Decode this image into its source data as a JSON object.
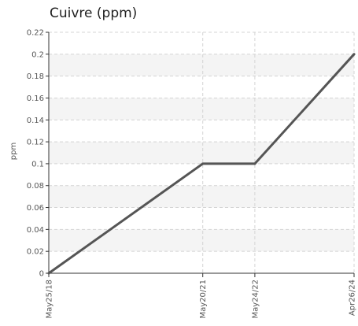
{
  "chart_data": {
    "type": "line",
    "title": "Cuivre (ppm)",
    "xlabel": "",
    "ylabel": "ppm",
    "categories": [
      "May25/18",
      "May20/21",
      "May24/22",
      "Apr26/24"
    ],
    "x": [
      "2018-05-25",
      "2021-05-20",
      "2022-05-24",
      "2024-04-26"
    ],
    "series": [
      {
        "values": [
          0,
          0.1,
          0.1,
          0.2
        ]
      }
    ],
    "ylim": [
      0,
      0.22
    ],
    "yticks": [
      "0",
      "0.02",
      "0.04",
      "0.06",
      "0.08",
      "0.1",
      "0.12",
      "0.14",
      "0.16",
      "0.18",
      "0.2",
      "0.22"
    ],
    "grid": true,
    "alternating_bands": true,
    "legend": "none",
    "colors": {
      "line": "#555555",
      "grid": "#d4d4d4",
      "band": "#f4f4f4",
      "axis": "#333333"
    }
  }
}
